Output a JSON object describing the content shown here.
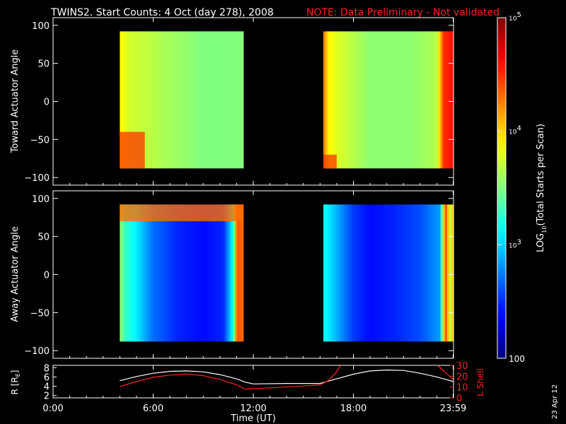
{
  "header": {
    "title": "TWINS2. Start Counts:  4 Oct (day 278), 2008",
    "note": "NOTE: Data Preliminary - Not validated"
  },
  "side_date": "23 Apr 12",
  "colors": {
    "background": "#000000",
    "axis": "#ffffff",
    "note": "#ff2020",
    "r_curve": "#ffffff",
    "l_curve": "#ff2020",
    "gap": "#000000"
  },
  "colorbar": {
    "label": "LOG10(Total Starts per Scan)",
    "label_parts": {
      "base": "LOG",
      "sub": "10",
      "rest": "(Total Starts per Scan)"
    },
    "scale": "log",
    "range": [
      100,
      100000
    ],
    "ticks": [
      {
        "value": 100,
        "label": "100"
      },
      {
        "value": 1000,
        "label": "10",
        "exp": "3"
      },
      {
        "value": 10000,
        "label": "10",
        "exp": "4"
      },
      {
        "value": 100000,
        "label": "10",
        "exp": "5"
      }
    ]
  },
  "chart_data": [
    {
      "type": "heatmap",
      "title": "TWINS2. Start Counts:  4 Oct (day 278), 2008",
      "ylabel": "Toward Actuator Angle",
      "xlim": [
        0,
        24
      ],
      "ylim": [
        -110,
        110
      ],
      "yticks": [
        100,
        50,
        0,
        -50,
        -100
      ],
      "xticks": [
        {
          "value": 0,
          "label": "0:00"
        },
        {
          "value": 6,
          "label": "6:00"
        },
        {
          "value": 12,
          "label": "12:00"
        },
        {
          "value": 18,
          "label": "18:00"
        },
        {
          "value": 23.98,
          "label": "23:59"
        }
      ],
      "y_range": [
        -88,
        92
      ],
      "segments": [
        {
          "x": [
            4.0,
            11.4
          ],
          "profile": [
            [
              4.0,
              8000
            ],
            [
              4.3,
              6500
            ],
            [
              4.6,
              5500
            ],
            [
              5.5,
              5000
            ],
            [
              7.0,
              4000
            ],
            [
              9.0,
              3200
            ],
            [
              10.5,
              3200
            ],
            [
              11.4,
              3300
            ]
          ],
          "low_angle_patch": {
            "x": [
              4.0,
              5.5
            ],
            "y": [
              -88,
              -40
            ],
            "value": 30000
          }
        },
        {
          "x": [
            16.2,
            24.0
          ],
          "profile": [
            [
              16.2,
              20000
            ],
            [
              16.5,
              8000
            ],
            [
              17.0,
              6000
            ],
            [
              19.0,
              3500
            ],
            [
              21.5,
              3500
            ],
            [
              23.0,
              4500
            ],
            [
              23.4,
              30000
            ],
            [
              24.0,
              40000
            ]
          ],
          "low_angle_patch": {
            "x": [
              16.2,
              17.0
            ],
            "y": [
              -88,
              -70
            ],
            "value": 30000
          }
        }
      ]
    },
    {
      "type": "heatmap",
      "ylabel": "Away Actuator Angle",
      "xlim": [
        0,
        24
      ],
      "ylim": [
        -110,
        110
      ],
      "yticks": [
        100,
        50,
        0,
        -50,
        -100
      ],
      "xticks": [
        {
          "value": 0,
          "label": "0:00"
        },
        {
          "value": 6,
          "label": "6:00"
        },
        {
          "value": 12,
          "label": "12:00"
        },
        {
          "value": 18,
          "label": "18:00"
        },
        {
          "value": 23.98,
          "label": "23:59"
        }
      ],
      "y_range": [
        -88,
        92
      ],
      "segments": [
        {
          "x": [
            4.0,
            11.4
          ],
          "profile": [
            [
              4.0,
              4000
            ],
            [
              4.3,
              2000
            ],
            [
              5.0,
              1200
            ],
            [
              6.0,
              500
            ],
            [
              7.5,
              300
            ],
            [
              9.0,
              250
            ],
            [
              10.2,
              300
            ],
            [
              10.8,
              1500
            ],
            [
              11.0,
              25000
            ],
            [
              11.4,
              20000
            ]
          ],
          "high_angle_band": {
            "y": [
              70,
              92
            ],
            "value": 20000
          }
        },
        {
          "x": [
            16.2,
            24.0
          ],
          "profile": [
            [
              16.2,
              1500
            ],
            [
              17.0,
              800
            ],
            [
              18.0,
              350
            ],
            [
              19.0,
              250
            ],
            [
              20.5,
              300
            ],
            [
              22.0,
              400
            ],
            [
              23.2,
              700
            ],
            [
              23.5,
              30000
            ],
            [
              23.8,
              5000
            ],
            [
              24.0,
              15000
            ]
          ],
          "high_angle_band": null
        }
      ]
    },
    {
      "type": "line",
      "xlim": [
        0,
        24
      ],
      "xlabel": "Time (UT)",
      "xticks": [
        {
          "value": 0,
          "label": "0:00"
        },
        {
          "value": 6,
          "label": "6:00"
        },
        {
          "value": 12,
          "label": "12:00"
        },
        {
          "value": 18,
          "label": "18:00"
        },
        {
          "value": 23.98,
          "label": "23:59"
        }
      ],
      "y_left": {
        "label": "R [RE]",
        "label_parts": {
          "base": "R [R",
          "sub": "E",
          "rest": "]"
        },
        "ylim": [
          1.5,
          8.5
        ],
        "ticks": [
          8,
          6,
          4,
          2
        ]
      },
      "y_right": {
        "label": "L Shell",
        "ylim": [
          0,
          30
        ],
        "ticks": [
          30,
          20,
          10,
          0
        ]
      },
      "series": [
        {
          "axis": "left",
          "x": [
            4.0,
            5.0,
            6.0,
            7.0,
            8.0,
            9.0,
            10.0,
            11.0,
            11.5,
            12.0,
            14.0,
            16.0,
            17.0,
            18.0,
            19.0,
            20.0,
            21.0,
            22.0,
            23.0,
            24.0
          ],
          "y": [
            5.2,
            6.1,
            6.8,
            7.2,
            7.3,
            7.1,
            6.5,
            5.6,
            4.9,
            4.5,
            4.6,
            4.6,
            5.6,
            6.6,
            7.3,
            7.5,
            7.4,
            6.8,
            6.0,
            5.0
          ]
        },
        {
          "axis": "right",
          "x": [
            4.0,
            5.0,
            6.0,
            7.0,
            8.0,
            9.0,
            10.0,
            11.0,
            11.5,
            12.0,
            14.0,
            16.0,
            16.5,
            17.0,
            17.3,
            22.9,
            23.2,
            23.6,
            24.0
          ],
          "y": [
            10.5,
            15.0,
            19.0,
            21.0,
            22.0,
            20.5,
            17.0,
            12.0,
            8.0,
            8.5,
            10.0,
            12.0,
            16.0,
            24.0,
            32.0,
            32.0,
            28.0,
            22.0,
            17.0
          ]
        }
      ]
    }
  ]
}
